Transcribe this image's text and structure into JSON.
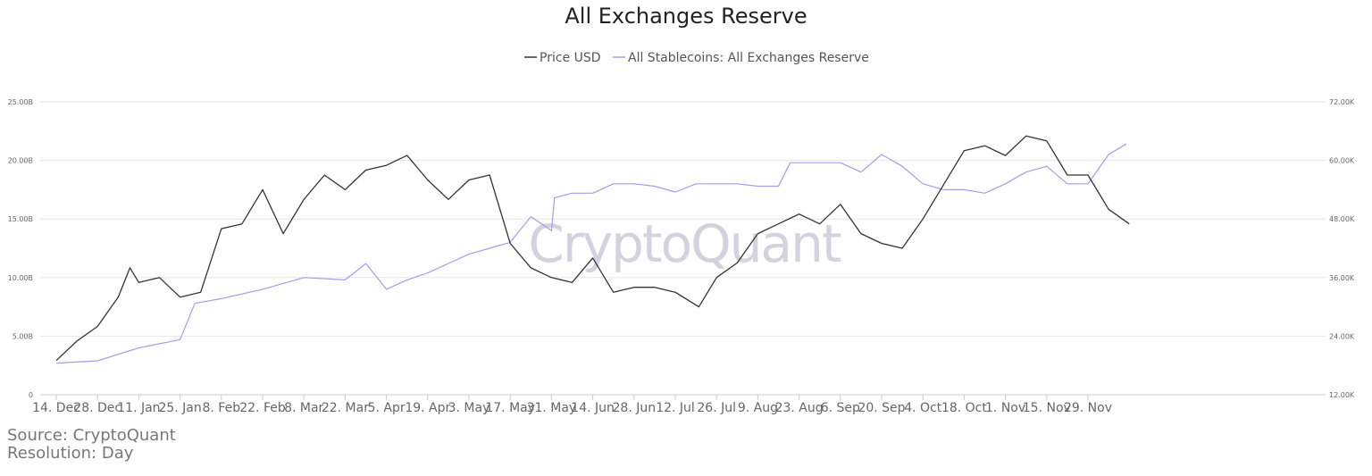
{
  "chart_data": {
    "type": "line",
    "title": "All Exchanges Reserve",
    "watermark": "CryptoQuant",
    "legend_position": "top-center",
    "grid": true,
    "x_ticks": [
      "14. Dec",
      "28. Dec",
      "11. Jan",
      "25. Jan",
      "8. Feb",
      "22. Feb",
      "8. Mar",
      "22. Mar",
      "5. Apr",
      "19. Apr",
      "3. May",
      "17. May",
      "31. May",
      "14. Jun",
      "28. Jun",
      "12. Jul",
      "26. Jul",
      "9. Aug",
      "23. Aug",
      "6. Sep",
      "20. Sep",
      "4. Oct",
      "18. Oct",
      "1. Nov",
      "15. Nov",
      "29. Nov"
    ],
    "y_left": {
      "ticks": [
        "0",
        "5.00B",
        "10.00B",
        "15.00B",
        "20.00B",
        "25.00B"
      ],
      "range": [
        0,
        25
      ],
      "unit": "B"
    },
    "y_right": {
      "ticks": [
        "12.00K",
        "24.00K",
        "36.00K",
        "48.00K",
        "60.00K",
        "72.00K"
      ],
      "range": [
        12,
        72
      ],
      "unit": "K"
    },
    "series": [
      {
        "name": "Price USD",
        "axis": "right",
        "color": "#333333",
        "points": [
          [
            "14. Dec",
            19
          ],
          [
            "21. Dec",
            23
          ],
          [
            "28. Dec",
            26
          ],
          [
            "4. Jan",
            32
          ],
          [
            "8. Jan",
            38
          ],
          [
            "11. Jan",
            35
          ],
          [
            "18. Jan",
            36
          ],
          [
            "25. Jan",
            32
          ],
          [
            "1. Feb",
            33
          ],
          [
            "8. Feb",
            46
          ],
          [
            "15. Feb",
            47
          ],
          [
            "22. Feb",
            54
          ],
          [
            "1. Mar",
            45
          ],
          [
            "8. Mar",
            52
          ],
          [
            "15. Mar",
            57
          ],
          [
            "22. Mar",
            54
          ],
          [
            "29. Mar",
            58
          ],
          [
            "5. Apr",
            59
          ],
          [
            "12. Apr",
            61
          ],
          [
            "19. Apr",
            56
          ],
          [
            "26. Apr",
            52
          ],
          [
            "3. May",
            56
          ],
          [
            "10. May",
            57
          ],
          [
            "17. May",
            43
          ],
          [
            "24. May",
            38
          ],
          [
            "31. May",
            36
          ],
          [
            "7. Jun",
            35
          ],
          [
            "14. Jun",
            40
          ],
          [
            "21. Jun",
            33
          ],
          [
            "28. Jun",
            34
          ],
          [
            "5. Jul",
            34
          ],
          [
            "12. Jul",
            33
          ],
          [
            "20. Jul",
            30
          ],
          [
            "26. Jul",
            36
          ],
          [
            "2. Aug",
            39
          ],
          [
            "9. Aug",
            45
          ],
          [
            "16. Aug",
            47
          ],
          [
            "23. Aug",
            49
          ],
          [
            "30. Aug",
            47
          ],
          [
            "6. Sep",
            51
          ],
          [
            "13. Sep",
            45
          ],
          [
            "20. Sep",
            43
          ],
          [
            "27. Sep",
            42
          ],
          [
            "4. Oct",
            48
          ],
          [
            "11. Oct",
            55
          ],
          [
            "18. Oct",
            62
          ],
          [
            "25. Oct",
            63
          ],
          [
            "1. Nov",
            61
          ],
          [
            "8. Nov",
            65
          ],
          [
            "15. Nov",
            64
          ],
          [
            "22. Nov",
            57
          ],
          [
            "29. Nov",
            57
          ],
          [
            "6. Dec",
            50
          ],
          [
            "13. Dec",
            47
          ]
        ]
      },
      {
        "name": "All Stablecoins: All Exchanges Reserve",
        "axis": "left",
        "color": "#a89be8",
        "points": [
          [
            "14. Dec",
            2.7
          ],
          [
            "28. Dec",
            2.9
          ],
          [
            "11. Jan",
            4.0
          ],
          [
            "25. Jan",
            4.7
          ],
          [
            "30. Jan",
            7.8
          ],
          [
            "8. Feb",
            8.2
          ],
          [
            "22. Feb",
            9.0
          ],
          [
            "8. Mar",
            10.0
          ],
          [
            "22. Mar",
            9.8
          ],
          [
            "29. Mar",
            11.2
          ],
          [
            "5. Apr",
            9.0
          ],
          [
            "12. Apr",
            9.8
          ],
          [
            "19. Apr",
            10.4
          ],
          [
            "3. May",
            12.0
          ],
          [
            "10. May",
            12.5
          ],
          [
            "17. May",
            13.0
          ],
          [
            "24. May",
            15.2
          ],
          [
            "31. May",
            14.0
          ],
          [
            "1. Jun",
            16.8
          ],
          [
            "7. Jun",
            17.2
          ],
          [
            "14. Jun",
            17.2
          ],
          [
            "21. Jun",
            18.0
          ],
          [
            "28. Jun",
            18.0
          ],
          [
            "5. Jul",
            17.8
          ],
          [
            "12. Jul",
            17.3
          ],
          [
            "19. Jul",
            18.0
          ],
          [
            "26. Jul",
            18.0
          ],
          [
            "2. Aug",
            18.0
          ],
          [
            "9. Aug",
            17.8
          ],
          [
            "16. Aug",
            17.8
          ],
          [
            "20. Aug",
            19.8
          ],
          [
            "30. Aug",
            19.8
          ],
          [
            "6. Sep",
            19.8
          ],
          [
            "13. Sep",
            19.0
          ],
          [
            "20. Sep",
            20.5
          ],
          [
            "27. Sep",
            19.5
          ],
          [
            "4. Oct",
            18.0
          ],
          [
            "11. Oct",
            17.5
          ],
          [
            "18. Oct",
            17.5
          ],
          [
            "25. Oct",
            17.2
          ],
          [
            "1. Nov",
            18.0
          ],
          [
            "8. Nov",
            19.0
          ],
          [
            "15. Nov",
            19.5
          ],
          [
            "22. Nov",
            18.0
          ],
          [
            "29. Nov",
            18.0
          ],
          [
            "6. Dec",
            20.5
          ],
          [
            "12. Dec",
            21.4
          ]
        ]
      }
    ],
    "source": "Source: CryptoQuant",
    "resolution": "Resolution: Day"
  }
}
